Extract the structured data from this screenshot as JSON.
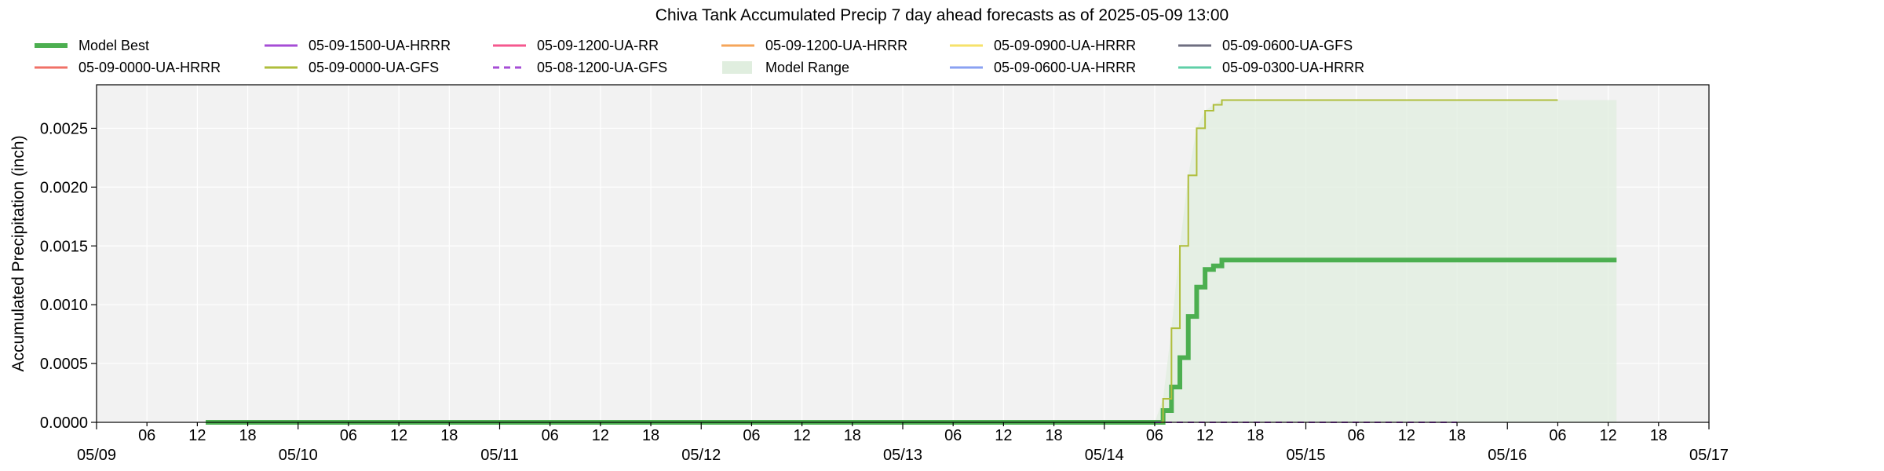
{
  "chart_data": {
    "type": "line",
    "title": "Chiva Tank Accumulated Precip 7 day ahead forecasts as of 2025-05-09 13:00",
    "xlabel": "",
    "ylabel": "Accumulated Precipitation (inch)",
    "x_range_hours": [
      0,
      192
    ],
    "ylim": [
      0,
      0.00287
    ],
    "grid": true,
    "legend_position": "top",
    "x_minor_ticks": [
      {
        "h": 6,
        "label": "06"
      },
      {
        "h": 12,
        "label": "12"
      },
      {
        "h": 18,
        "label": "18"
      },
      {
        "h": 30,
        "label": "06"
      },
      {
        "h": 36,
        "label": "12"
      },
      {
        "h": 42,
        "label": "18"
      },
      {
        "h": 54,
        "label": "06"
      },
      {
        "h": 60,
        "label": "12"
      },
      {
        "h": 66,
        "label": "18"
      },
      {
        "h": 78,
        "label": "06"
      },
      {
        "h": 84,
        "label": "12"
      },
      {
        "h": 90,
        "label": "18"
      },
      {
        "h": 102,
        "label": "06"
      },
      {
        "h": 108,
        "label": "12"
      },
      {
        "h": 114,
        "label": "18"
      },
      {
        "h": 126,
        "label": "06"
      },
      {
        "h": 132,
        "label": "12"
      },
      {
        "h": 138,
        "label": "18"
      },
      {
        "h": 150,
        "label": "06"
      },
      {
        "h": 156,
        "label": "12"
      },
      {
        "h": 162,
        "label": "18"
      },
      {
        "h": 174,
        "label": "06"
      },
      {
        "h": 180,
        "label": "12"
      },
      {
        "h": 186,
        "label": "18"
      }
    ],
    "x_major_ticks": [
      {
        "h": 0,
        "label": "05/09"
      },
      {
        "h": 24,
        "label": "05/10"
      },
      {
        "h": 48,
        "label": "05/11"
      },
      {
        "h": 72,
        "label": "05/12"
      },
      {
        "h": 96,
        "label": "05/13"
      },
      {
        "h": 120,
        "label": "05/14"
      },
      {
        "h": 144,
        "label": "05/15"
      },
      {
        "h": 168,
        "label": "05/16"
      },
      {
        "h": 192,
        "label": "05/17"
      }
    ],
    "y_ticks": [
      {
        "v": 0.0,
        "label": "0.0000"
      },
      {
        "v": 0.0005,
        "label": "0.0005"
      },
      {
        "v": 0.001,
        "label": "0.0010"
      },
      {
        "v": 0.0015,
        "label": "0.0015"
      },
      {
        "v": 0.002,
        "label": "0.0020"
      },
      {
        "v": 0.0025,
        "label": "0.0025"
      }
    ],
    "series": [
      {
        "name": "Model Best",
        "color": "#4caf50",
        "width": 6,
        "dash": "",
        "points": [
          [
            13,
            0
          ],
          [
            126,
            0
          ],
          [
            127,
            0.0001
          ],
          [
            128,
            0.0003
          ],
          [
            129,
            0.00055
          ],
          [
            130,
            0.0009
          ],
          [
            131,
            0.00115
          ],
          [
            132,
            0.0013
          ],
          [
            133,
            0.00133
          ],
          [
            134,
            0.00138
          ],
          [
            181,
            0.00138
          ]
        ]
      },
      {
        "name": "05-09-0000-UA-HRRR",
        "color": "#f07167",
        "width": 2,
        "dash": "",
        "points": []
      },
      {
        "name": "05-09-1500-UA-HRRR",
        "color": "#a64dd6",
        "width": 2,
        "dash": "",
        "points": []
      },
      {
        "name": "05-09-0000-UA-GFS",
        "color": "#afbe3b",
        "width": 2,
        "dash": "",
        "points": [
          [
            126,
            0
          ],
          [
            127,
            0.0002
          ],
          [
            128,
            0.0008
          ],
          [
            129,
            0.0015
          ],
          [
            130,
            0.0021
          ],
          [
            131,
            0.0025
          ],
          [
            132,
            0.00265
          ],
          [
            133,
            0.0027
          ],
          [
            134,
            0.00274
          ],
          [
            174,
            0.00274
          ]
        ]
      },
      {
        "name": "05-09-1200-UA-RR",
        "color": "#f5588f",
        "width": 2,
        "dash": "",
        "points": []
      },
      {
        "name": "05-08-1200-UA-GFS",
        "color": "#a64dd6",
        "width": 2,
        "dash": "8,6",
        "points": [
          [
            126,
            0
          ],
          [
            162,
            0
          ]
        ]
      },
      {
        "name": "05-09-1200-UA-HRRR",
        "color": "#f5a55a",
        "width": 2,
        "dash": "",
        "points": []
      },
      {
        "name": "Model Range",
        "color": "#e0eedf",
        "width": 0,
        "dash": "",
        "points": []
      },
      {
        "name": "05-09-0900-UA-HRRR",
        "color": "#f6e26a",
        "width": 2,
        "dash": "",
        "points": []
      },
      {
        "name": "05-09-0600-UA-HRRR",
        "color": "#8aa1f2",
        "width": 2,
        "dash": "",
        "points": []
      },
      {
        "name": "05-09-0600-UA-GFS",
        "color": "#6e6e80",
        "width": 2,
        "dash": "",
        "points": []
      },
      {
        "name": "05-09-0300-UA-HRRR",
        "color": "#5fcfa7",
        "width": 2,
        "dash": "",
        "points": []
      }
    ],
    "model_range": {
      "color": "#e0eedf",
      "upper": [
        [
          126,
          0
        ],
        [
          127,
          0.0002
        ],
        [
          128,
          0.0008
        ],
        [
          129,
          0.0015
        ],
        [
          130,
          0.0021
        ],
        [
          131,
          0.0025
        ],
        [
          132,
          0.00265
        ],
        [
          133,
          0.0027
        ],
        [
          134,
          0.00274
        ],
        [
          181,
          0.00274
        ]
      ],
      "lower": [
        [
          181,
          0
        ],
        [
          126,
          0
        ]
      ]
    }
  }
}
